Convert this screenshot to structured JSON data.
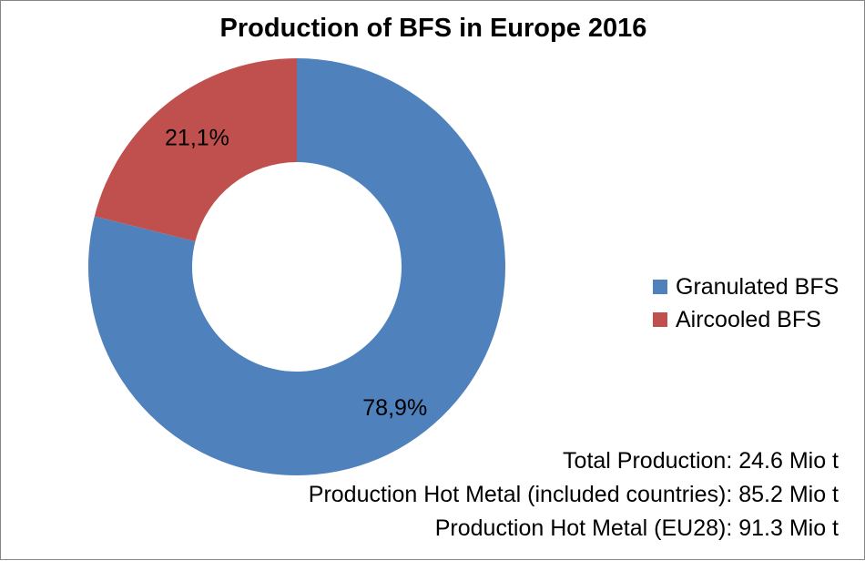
{
  "title": "Production of BFS in Europe 2016",
  "chart_data": {
    "type": "pie",
    "variant": "donut",
    "title": "Production of BFS in Europe 2016",
    "categories": [
      "Granulated BFS",
      "Aircooled BFS"
    ],
    "values": [
      78.9,
      21.1
    ],
    "data_labels": [
      "78,9%",
      "21,1%"
    ],
    "colors": [
      "#4f81bd",
      "#c0504d"
    ],
    "legend_position": "right"
  },
  "legend": {
    "items": [
      {
        "label": "Granulated BFS",
        "color": "#4f81bd"
      },
      {
        "label": "Aircooled BFS",
        "color": "#c0504d"
      }
    ]
  },
  "notes": {
    "total_production": "Total Production: 24.6 Mio t",
    "hot_metal_included": "Production Hot Metal (included countries): 85.2 Mio t",
    "hot_metal_eu28": "Production Hot Metal (EU28): 91.3 Mio t"
  }
}
